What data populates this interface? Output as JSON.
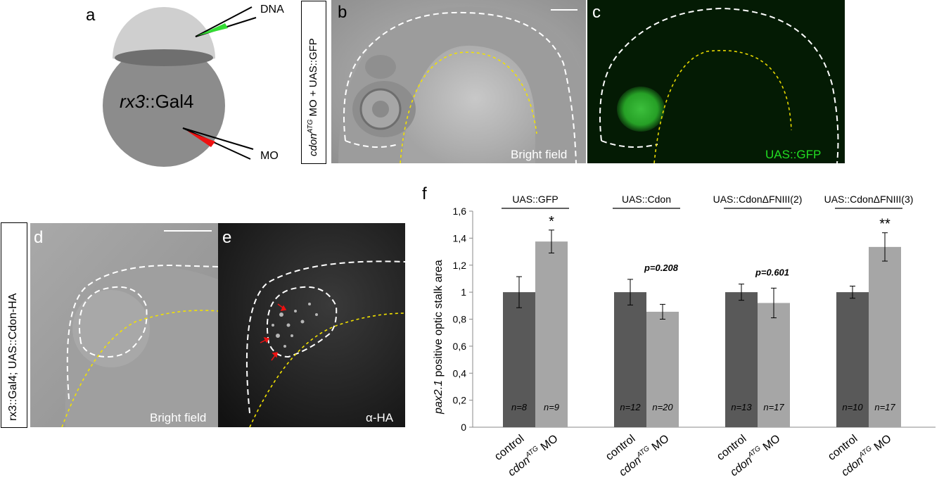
{
  "panel_a": {
    "letter": "a",
    "label_prefix": "rx3",
    "label_suffix": "::Gal4",
    "dna_label": "DNA",
    "mo_label": "MO"
  },
  "panel_bc": {
    "side_label_1": "cdon",
    "side_label_sup": "ATG",
    "side_label_2": " MO + UAS::GFP",
    "b_letter": "b",
    "b_caption": "Bright field",
    "c_letter": "c",
    "c_caption": "UAS::GFP",
    "c_caption_color": "#22dd22"
  },
  "panel_de": {
    "side_label": "rx3::Gal4; UAS::Cdon-HA",
    "d_letter": "d",
    "d_caption": "Bright field",
    "e_letter": "e",
    "e_caption": "α-HA"
  },
  "chart_data": {
    "type": "bar",
    "panel_letter": "f",
    "ylabel_italic": "pax2.1",
    "ylabel_rest": " positive optic stalk area",
    "ylim": [
      0,
      1.6
    ],
    "yticks": [
      "0",
      "0,2",
      "0,4",
      "0,6",
      "0,8",
      "1",
      "1,2",
      "1,4",
      "1,6"
    ],
    "series_colors": {
      "control": "#595959",
      "cdon_mo": "#a6a6a6"
    },
    "x_label_control": "control",
    "x_label_mo_italic": "cdon",
    "x_label_mo_sup": "ATG",
    "x_label_mo_rest": " MO",
    "groups": [
      {
        "title": "UAS::GFP",
        "control": 1.0,
        "control_err": 0.115,
        "mo": 1.375,
        "mo_err": 0.085,
        "n_control": "n=8",
        "n_mo": "n=9",
        "annotation": "*"
      },
      {
        "title": "UAS::Cdon",
        "control": 1.0,
        "control_err": 0.095,
        "mo": 0.855,
        "mo_err": 0.055,
        "n_control": "n=12",
        "n_mo": "n=20",
        "annotation": "p=0.208"
      },
      {
        "title": "UAS::CdonΔFNIII(2)",
        "control": 1.0,
        "control_err": 0.06,
        "mo": 0.92,
        "mo_err": 0.11,
        "n_control": "n=13",
        "n_mo": "n=17",
        "annotation": "p=0.601"
      },
      {
        "title": "UAS::CdonΔFNIII(3)",
        "control": 1.0,
        "control_err": 0.045,
        "mo": 1.335,
        "mo_err": 0.105,
        "n_control": "n=10",
        "n_mo": "n=17",
        "annotation": "**"
      }
    ]
  }
}
